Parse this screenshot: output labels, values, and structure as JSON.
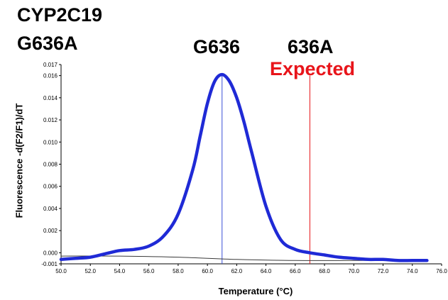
{
  "labels": {
    "gene": "CYP2C19",
    "variant": "G636A",
    "wild_peak": "G636",
    "mutant_peak": "636A",
    "expected": "Expected"
  },
  "chart_data": {
    "type": "line",
    "title": "",
    "xlabel": "Temperature (°C)",
    "ylabel": "Fluorescence -d(F2/F1)/dT",
    "xlim": [
      50.0,
      76.0
    ],
    "ylim": [
      -0.001,
      0.017
    ],
    "x_ticks": [
      50.0,
      52.0,
      54.0,
      56.0,
      58.0,
      60.0,
      62.0,
      64.0,
      66.0,
      68.0,
      70.0,
      72.0,
      74.0,
      76.0
    ],
    "x_tick_labels": [
      "50.0",
      "52.0",
      "54.0",
      "56.0",
      "58.0",
      "60.0",
      "62.0",
      "64.0",
      "66.0",
      "68.0",
      "70.0",
      "72.0",
      "74.0",
      "76.0"
    ],
    "y_ticks": [
      -0.001,
      0.0,
      0.002,
      0.004,
      0.006,
      0.008,
      0.01,
      0.012,
      0.014,
      0.016,
      0.017
    ],
    "y_tick_labels": [
      "-0.001",
      "0.000",
      "0.002",
      "0.004",
      "0.006",
      "0.008",
      "0.010",
      "0.012",
      "0.014",
      "0.016",
      "0.017"
    ],
    "grid": false,
    "vertical_markers": [
      {
        "x": 61.0,
        "color": "#3b4fd8"
      },
      {
        "x": 67.0,
        "color": "#e8141a"
      }
    ],
    "series": [
      {
        "color": "#1f2ad6",
        "x": [
          50.0,
          51.0,
          52.0,
          53.0,
          54.0,
          55.0,
          56.0,
          57.0,
          58.0,
          59.0,
          59.5,
          60.0,
          60.5,
          61.0,
          61.5,
          62.0,
          62.5,
          63.0,
          64.0,
          65.0,
          66.0,
          67.0,
          68.0,
          69.0,
          70.0,
          71.0,
          72.0,
          73.0,
          74.0,
          75.0
        ],
        "y": [
          -0.0006,
          -0.0005,
          -0.0004,
          -0.0001,
          0.0002,
          0.0003,
          0.0006,
          0.0015,
          0.0035,
          0.0075,
          0.0105,
          0.0135,
          0.0155,
          0.0161,
          0.0155,
          0.014,
          0.0118,
          0.0092,
          0.0042,
          0.0012,
          0.0003,
          0.0,
          -0.0002,
          -0.0004,
          -0.0005,
          -0.0006,
          -0.0006,
          -0.0007,
          -0.0007,
          -0.0007
        ]
      },
      {
        "color": "#3a3a3a",
        "x": [
          50.0,
          54.0,
          58.0,
          62.0,
          66.0,
          70.0,
          74.0,
          75.0
        ],
        "y": [
          -0.0003,
          -0.0003,
          -0.0004,
          -0.0006,
          -0.0007,
          -0.0007,
          -0.0007,
          -0.0007
        ]
      }
    ]
  }
}
